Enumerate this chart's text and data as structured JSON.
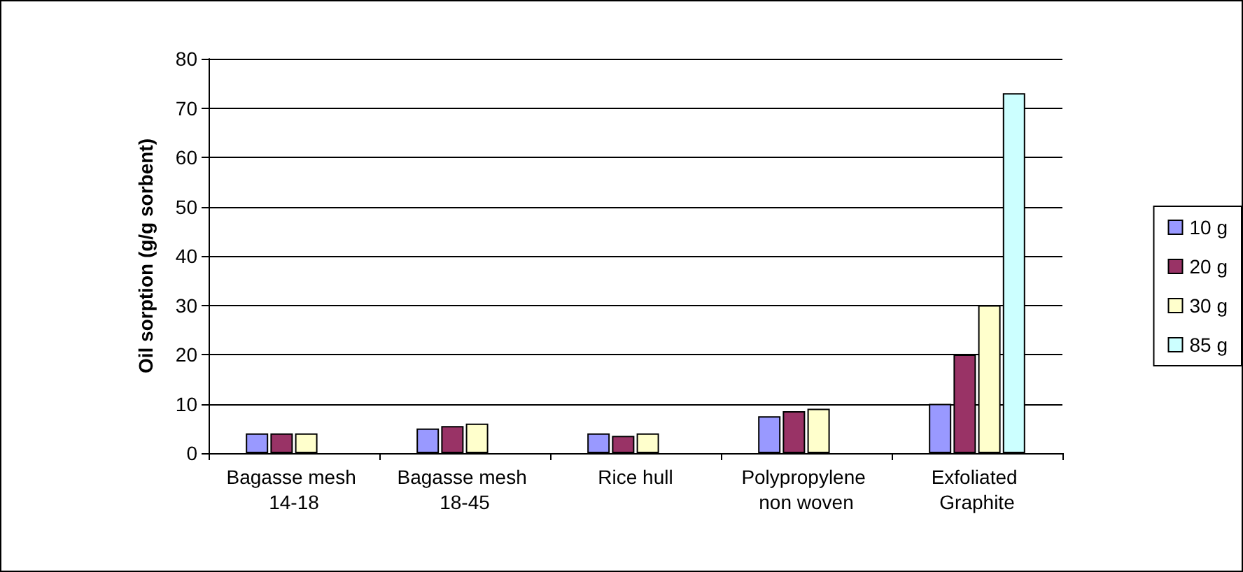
{
  "chart_data": {
    "type": "bar",
    "ylabel": "Oil sorption (g/g sorbent)",
    "categories": [
      "Bagasse mesh 14-18",
      "Bagasse mesh 18-45",
      "Rice hull",
      "Polypropylene non woven",
      "Exfoliated Graphite"
    ],
    "series": [
      {
        "name": "10 g",
        "color": "#9999ff",
        "values": [
          4,
          5,
          4,
          7.5,
          10
        ]
      },
      {
        "name": "20 g",
        "color": "#993366",
        "values": [
          4,
          5.5,
          3.5,
          8.5,
          20
        ]
      },
      {
        "name": "30 g",
        "color": "#ffffcc",
        "values": [
          4,
          6,
          4,
          9,
          30
        ]
      },
      {
        "name": "85 g",
        "color": "#ccffff",
        "values": [
          null,
          null,
          null,
          null,
          73
        ]
      }
    ],
    "ylim": [
      0,
      80
    ],
    "yticks": [
      0,
      10,
      20,
      30,
      40,
      50,
      60,
      70,
      80
    ],
    "grid": "y",
    "legend": "right"
  }
}
